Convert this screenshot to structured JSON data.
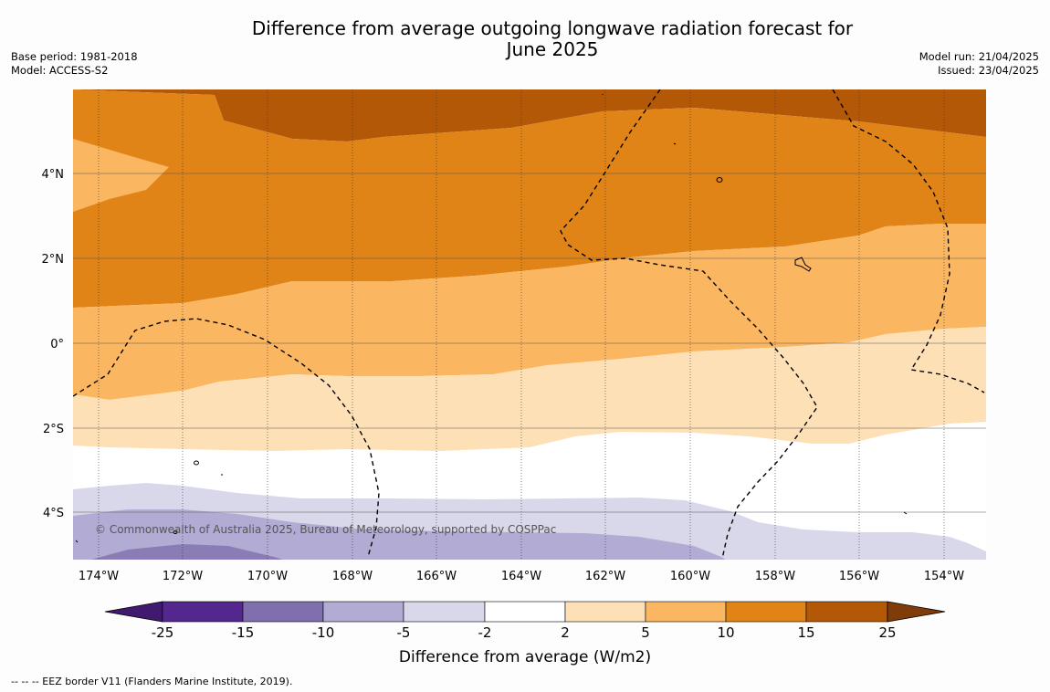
{
  "title_line1": "Difference from average outgoing longwave radiation forecast for",
  "title_line2": "June 2025",
  "base_period": "Base period: 1981-2018",
  "model": "Model: ACCESS-S2",
  "model_run": "Model run: 21/04/2025",
  "issued": "Issued: 23/04/2025",
  "copyright": "© Commonwealth of Australia 2025, Bureau of Meteorology, supported by COSPPac",
  "lat_labels": [
    "4°N",
    "2°N",
    "0°",
    "2°S",
    "4°S"
  ],
  "lon_labels": [
    "174°W",
    "172°W",
    "170°W",
    "168°W",
    "166°W",
    "164°W",
    "162°W",
    "160°W",
    "158°W",
    "156°W",
    "154°W"
  ],
  "colorbar": {
    "ticks": [
      "-25",
      "-15",
      "-10",
      "-5",
      "-2",
      "2",
      "5",
      "10",
      "15",
      "25"
    ],
    "colors": [
      "#3f1a6e",
      "#54278f",
      "#7f6faf",
      "#b2abd3",
      "#d8d8ea",
      "#ffffff",
      "#fde0b6",
      "#fbb661",
      "#e08418",
      "#b35806",
      "#7f3b08"
    ],
    "title": "Difference from average (W/m2)"
  },
  "colors": {
    "band_dark_orange": "#b35806",
    "band_orange": "#e08418",
    "band_light_orange": "#fbb661",
    "band_pale": "#fde0b6",
    "band_white": "#ffffff",
    "band_pale_purple": "#d8d8ea",
    "band_light_purple": "#b2abd3",
    "band_mid_purple": "#8a7db6"
  },
  "footer": "--  --  -- EEZ border V11 (Flanders Marine Institute, 2019)."
}
